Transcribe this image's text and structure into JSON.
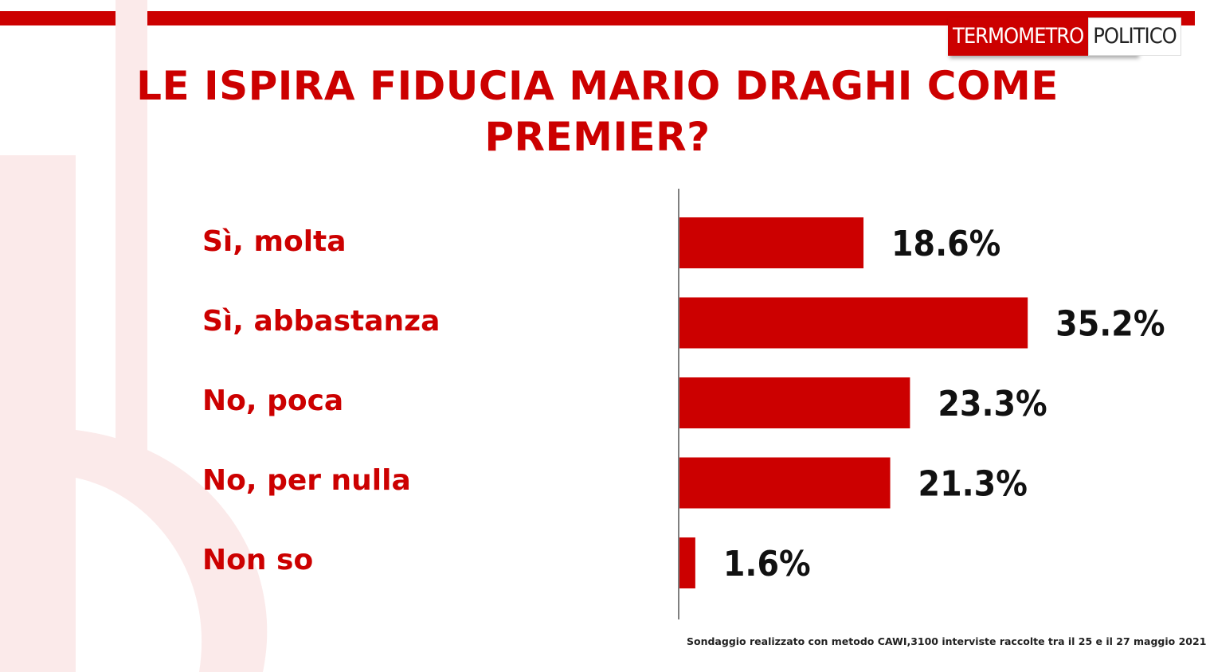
{
  "logo": {
    "left": "TERMOMETRO",
    "right": "POLITICO"
  },
  "title_line1": "LE ISPIRA FIDUCIA MARIO DRAGHI COME",
  "title_line2": "PREMIER?",
  "footnote": "Sondaggio realizzato con metodo CAWI,3100 interviste raccolte tra il 25  e il 27 maggio 2021",
  "colors": {
    "accent": "#cc0000",
    "watermark": "#fbeaea"
  },
  "chart_data": {
    "type": "bar",
    "orientation": "horizontal",
    "title": "LE ISPIRA FIDUCIA MARIO DRAGHI COME PREMIER?",
    "categories": [
      "Sì, molta",
      "Sì, abbastanza",
      "No, poca",
      "No, per nulla",
      "Non so"
    ],
    "values": [
      18.6,
      35.2,
      23.3,
      21.3,
      1.6
    ],
    "value_labels": [
      "18.6%",
      "35.2%",
      "23.3%",
      "21.3%",
      "1.6%"
    ],
    "unit": "%",
    "grid": false,
    "legend": "none"
  }
}
